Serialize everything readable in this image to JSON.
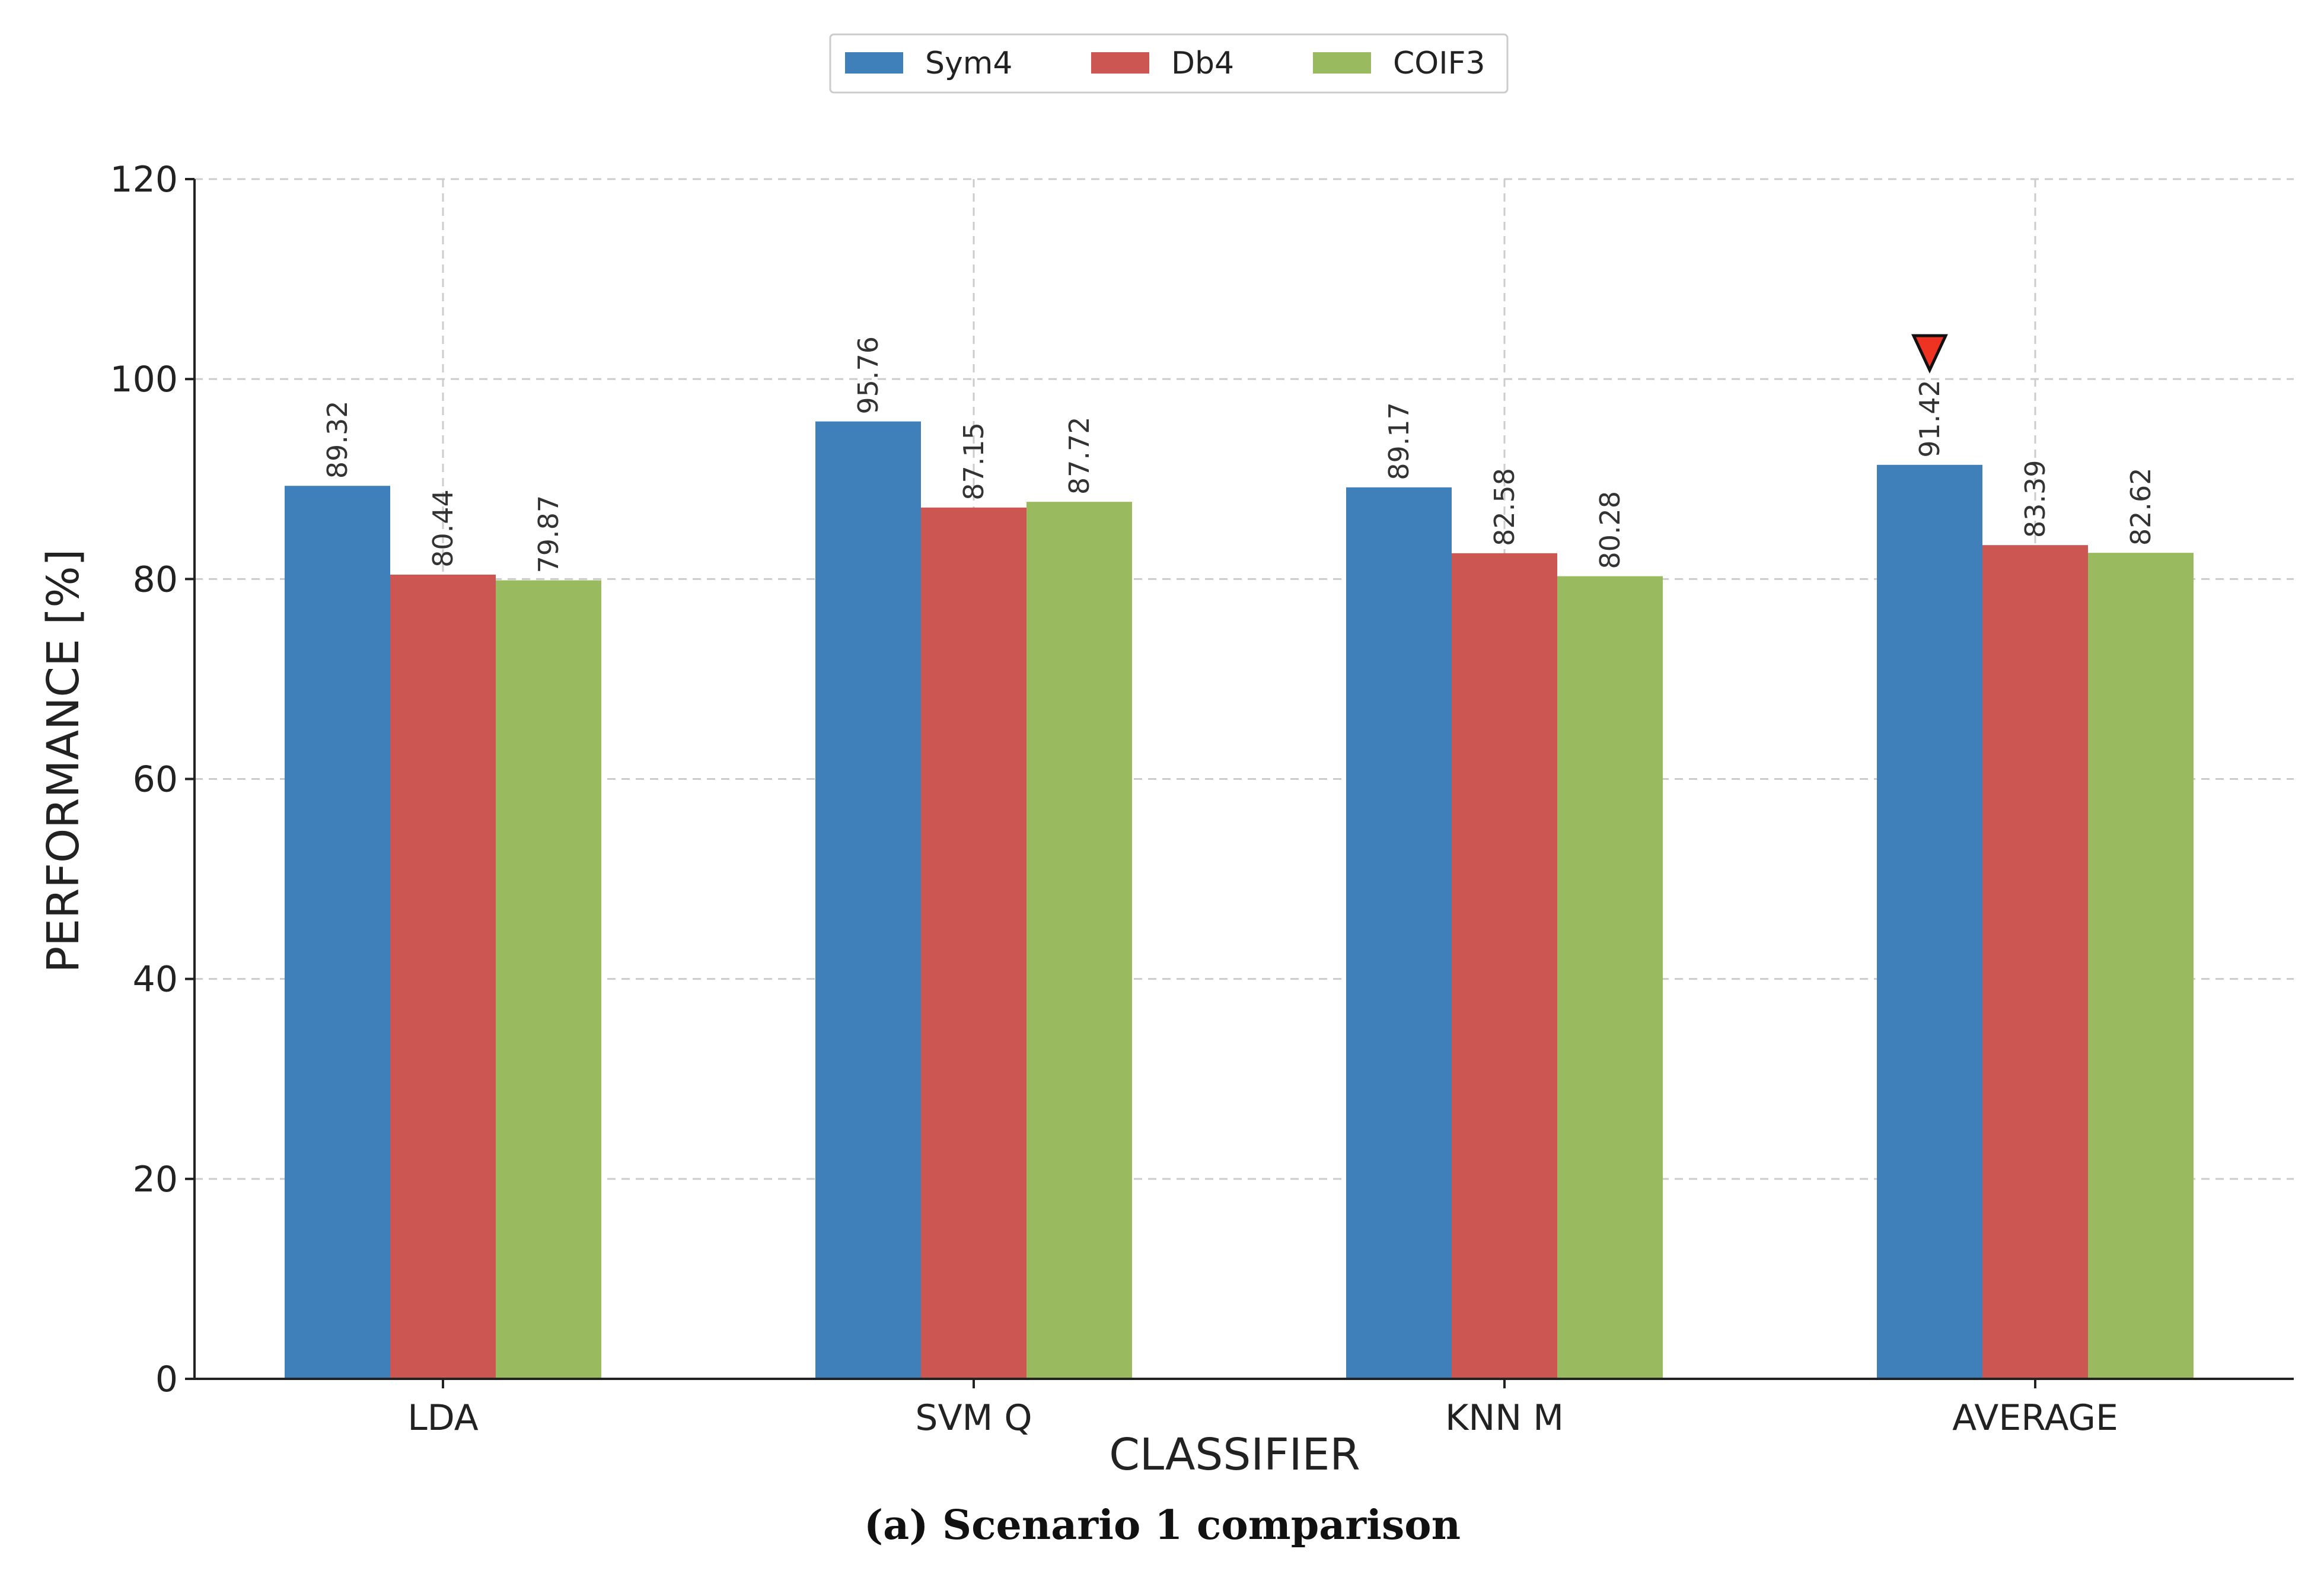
{
  "chart_data": {
    "type": "bar",
    "categories": [
      "LDA",
      "SVM Q",
      "KNN M",
      "AVERAGE"
    ],
    "series": [
      {
        "name": "Sym4",
        "color": "#3f7fba",
        "values": [
          89.32,
          95.76,
          89.17,
          91.42
        ]
      },
      {
        "name": "Db4",
        "color": "#cc5652",
        "values": [
          80.44,
          87.15,
          82.58,
          83.39
        ]
      },
      {
        "name": "COIF3",
        "color": "#9aba60",
        "values": [
          79.87,
          87.72,
          80.28,
          82.62
        ]
      }
    ],
    "xlabel": "CLASSIFIER",
    "ylabel": "PERFORMANCE [%]",
    "ylim": [
      0,
      120
    ],
    "yticks": [
      0,
      20,
      40,
      60,
      80,
      100,
      120
    ],
    "grid": true,
    "legend_position": "top-center",
    "marker": {
      "category": "AVERAGE",
      "series": "Sym4",
      "shape": "down-triangle",
      "color": "#ee3322"
    }
  },
  "caption": "(a) Scenario 1 comparison"
}
